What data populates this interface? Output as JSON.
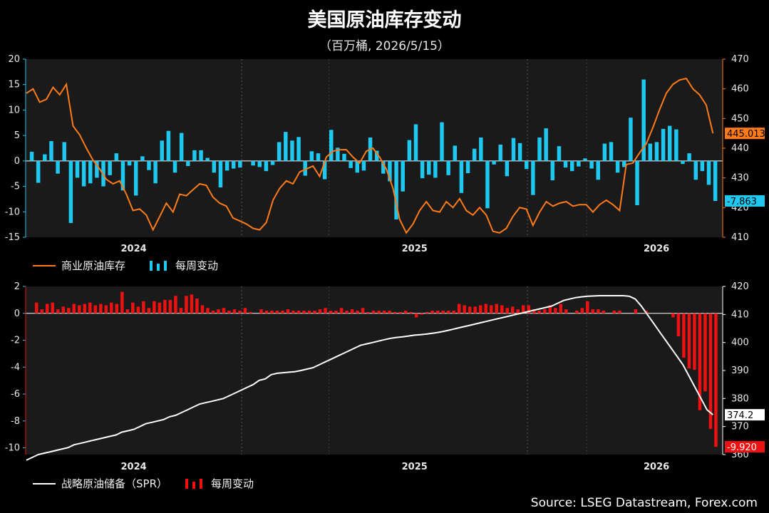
{
  "title": "美国原油库存变动",
  "subtitle": "（百万桶, 2026/5/15）",
  "source": "Source: LSEG Datastream, Forex.com",
  "colors": {
    "commercial_line": "#ff7a18",
    "weekly_cyan": "#1ec8f0",
    "spr_line": "#ffffff",
    "weekly_red": "#ee1111",
    "plot_bg": "#1a1a1a",
    "grid": "#555555"
  },
  "x_ticks": [
    "2024",
    "2025",
    "2026"
  ],
  "chart_data": [
    {
      "type": "bar+line",
      "title": "",
      "x_ticks": [
        "2024",
        "2025",
        "2026"
      ],
      "y_left": {
        "range": [
          -15,
          20
        ],
        "ticks": [
          "20",
          "15",
          "10",
          "5",
          "0",
          "-5",
          "-10",
          "-15"
        ]
      },
      "y_right": {
        "range": [
          410,
          470
        ],
        "ticks": [
          "470",
          "460",
          "450",
          "440",
          "430",
          "420",
          "410"
        ]
      },
      "legend": [
        {
          "name": "商业原油库存",
          "kind": "line"
        },
        {
          "name": "每周变动",
          "kind": "bar"
        }
      ],
      "last_labels": {
        "line": "445.013",
        "bar": "-7.863"
      },
      "series": [
        {
          "name": "商业原油库存",
          "axis": "right",
          "values": [
            458.5,
            460,
            455.5,
            456.5,
            460.5,
            458,
            461.5,
            447.5,
            444.5,
            440,
            436,
            433,
            429.5,
            428,
            429,
            424.5,
            419,
            419.5,
            417.5,
            412.5,
            417,
            421.5,
            418.5,
            424.5,
            424,
            426,
            428,
            427.5,
            423.5,
            421.5,
            420.5,
            416.5,
            415.5,
            414.5,
            413,
            412.5,
            415,
            422.5,
            426.5,
            429,
            428,
            432,
            433,
            434,
            430.5,
            437,
            439,
            439.5,
            439.5,
            437,
            435,
            439,
            440,
            437,
            433,
            426.5,
            416,
            411.5,
            414.5,
            419,
            422,
            419,
            418.5,
            422,
            420,
            423,
            419,
            417.5,
            420,
            417.5,
            412,
            411.5,
            413,
            417,
            420,
            419.5,
            414,
            418.5,
            422,
            420.5,
            421.5,
            422,
            420.5,
            421,
            421,
            418.5,
            421,
            422.5,
            421,
            419,
            434.5,
            435,
            438.5,
            441.5,
            447,
            453,
            458.5,
            461.5,
            463,
            463.5,
            460,
            458,
            454.5,
            445
          ]
        },
        {
          "name": "每周变动",
          "axis": "left",
          "values": [
            1.8,
            -4.3,
            1.3,
            3.9,
            -2.5,
            3.7,
            -12.2,
            -3.3,
            -5,
            -4.4,
            -3.3,
            -5,
            -2.8,
            1.5,
            -5.8,
            -0.9,
            -6.8,
            0.9,
            -1.8,
            -4.4,
            4,
            5.9,
            -2.3,
            5.5,
            -1,
            2.1,
            2.1,
            0.6,
            -2.3,
            -5.2,
            -1.9,
            -1.5,
            -1.3,
            0,
            -0.9,
            -1.2,
            -2,
            -0.8,
            3.7,
            5.7,
            4,
            4.7,
            -2.9,
            1.9,
            1.5,
            -3.6,
            6.1,
            2.6,
            1.4,
            -1.4,
            -2.3,
            -1.9,
            4.6,
            2,
            -2.5,
            -4,
            -11.5,
            -6,
            4.1,
            7.2,
            -3.4,
            -2.7,
            -3.3,
            7.6,
            -2.8,
            3,
            -6.3,
            -2.4,
            2.4,
            4.6,
            -9.3,
            -0.7,
            3.2,
            -3,
            4.5,
            3.5,
            -1.6,
            -6.7,
            4.6,
            6.4,
            -3.8,
            2.9,
            -1.3,
            -2,
            -1.1,
            0.5,
            -1.5,
            -3.7,
            3.4,
            3.7,
            -2.3,
            -1.2,
            8.5,
            -8.7,
            16,
            3.4,
            3.7,
            6.3,
            6.9,
            6.2,
            -0.6,
            1.5,
            -3.7,
            -2,
            -4.7,
            -7.863
          ]
        }
      ]
    },
    {
      "type": "bar+line",
      "title": "",
      "x_ticks": [
        "2024",
        "2025",
        "2026"
      ],
      "y_left": {
        "range": [
          -10.5,
          2
        ],
        "ticks": [
          "2",
          "0",
          "-2",
          "-4",
          "-6",
          "-8",
          "-10"
        ]
      },
      "y_right": {
        "range": [
          360,
          420
        ],
        "ticks": [
          "420",
          "410",
          "400",
          "390",
          "380",
          "370",
          "360"
        ]
      },
      "legend": [
        {
          "name": "战略原油储备（SPR）",
          "kind": "line"
        },
        {
          "name": "每周变动",
          "kind": "bar"
        }
      ],
      "last_labels": {
        "line": "374.2",
        "bar": "-9.920"
      },
      "series": [
        {
          "name": "战略原油储备（SPR）",
          "axis": "right",
          "values": [
            358,
            359,
            360,
            360.5,
            361,
            361.5,
            362,
            362.5,
            363.5,
            364,
            364.5,
            365,
            365.5,
            366,
            366.5,
            367,
            368,
            368.5,
            369,
            370,
            371,
            371.5,
            372,
            372.5,
            373.5,
            374,
            375,
            376,
            377,
            378,
            378.5,
            379,
            379.5,
            380,
            381,
            382,
            383,
            384,
            385,
            386.5,
            387,
            388.5,
            389,
            389.2,
            389.4,
            389.6,
            390,
            390.5,
            391,
            392,
            393,
            394,
            395,
            396,
            397,
            398,
            399,
            399.5,
            400,
            400.5,
            401,
            401.5,
            401.8,
            402,
            402.3,
            402.6,
            402.8,
            403,
            403.3,
            403.6,
            404,
            404.5,
            405,
            405.5,
            406,
            406.5,
            407,
            407.5,
            408,
            408.5,
            409,
            409.5,
            410,
            410.5,
            411,
            411.5,
            412,
            412.5,
            413,
            414,
            415,
            415.5,
            416,
            416.3,
            416.5,
            416.6,
            416.7,
            416.7,
            416.7,
            416.7,
            416.7,
            416.5,
            415.5,
            413,
            410,
            407,
            404,
            401,
            398,
            395,
            392,
            388,
            384,
            380,
            376,
            374.2
          ]
        },
        {
          "name": "每周变动",
          "axis": "left",
          "values": [
            0,
            0.8,
            0.3,
            0.7,
            0.8,
            0.3,
            0.5,
            0.4,
            0.7,
            0.6,
            0.7,
            0.8,
            0.6,
            0.7,
            0.6,
            0.8,
            0.7,
            1.6,
            0.3,
            0.8,
            0.5,
            0.9,
            0.4,
            0.9,
            0.8,
            1,
            1,
            1.3,
            0.4,
            1.3,
            1.4,
            1.1,
            0.6,
            0.4,
            0.2,
            0.3,
            0.4,
            0.2,
            0.3,
            0.2,
            0.4,
            0.1,
            0,
            0.3,
            0.2,
            0.2,
            0.2,
            0.2,
            0.3,
            0.2,
            0.2,
            0.2,
            0.2,
            0.2,
            0.3,
            0.4,
            0.2,
            0.2,
            0.4,
            0.2,
            0.3,
            0.2,
            0.4,
            0.1,
            0.2,
            0.2,
            0.2,
            0.2,
            0.1,
            0.1,
            0.2,
            0.1,
            -0.3,
            -0.1,
            0.1,
            0.2,
            0.2,
            0.2,
            0.2,
            0.2,
            0.7,
            0.6,
            0.5,
            0.5,
            0.6,
            0.7,
            0.6,
            0.7,
            0.6,
            0.4,
            0.5,
            0.3,
            0.6,
            0.6,
            0.3,
            0.2,
            0.3,
            0.6,
            0.4,
            0.7,
            0.3,
            0,
            0.2,
            0.4,
            0.9,
            0.3,
            0.3,
            0.2,
            0,
            0.2,
            0.2,
            0,
            0,
            0.3,
            0,
            0.2,
            0,
            0,
            0,
            0,
            -0.3,
            -1.7,
            -3.3,
            -4.1,
            -4.2,
            -7.2,
            -5.8,
            -8.6,
            -9.92
          ]
        }
      ]
    }
  ]
}
